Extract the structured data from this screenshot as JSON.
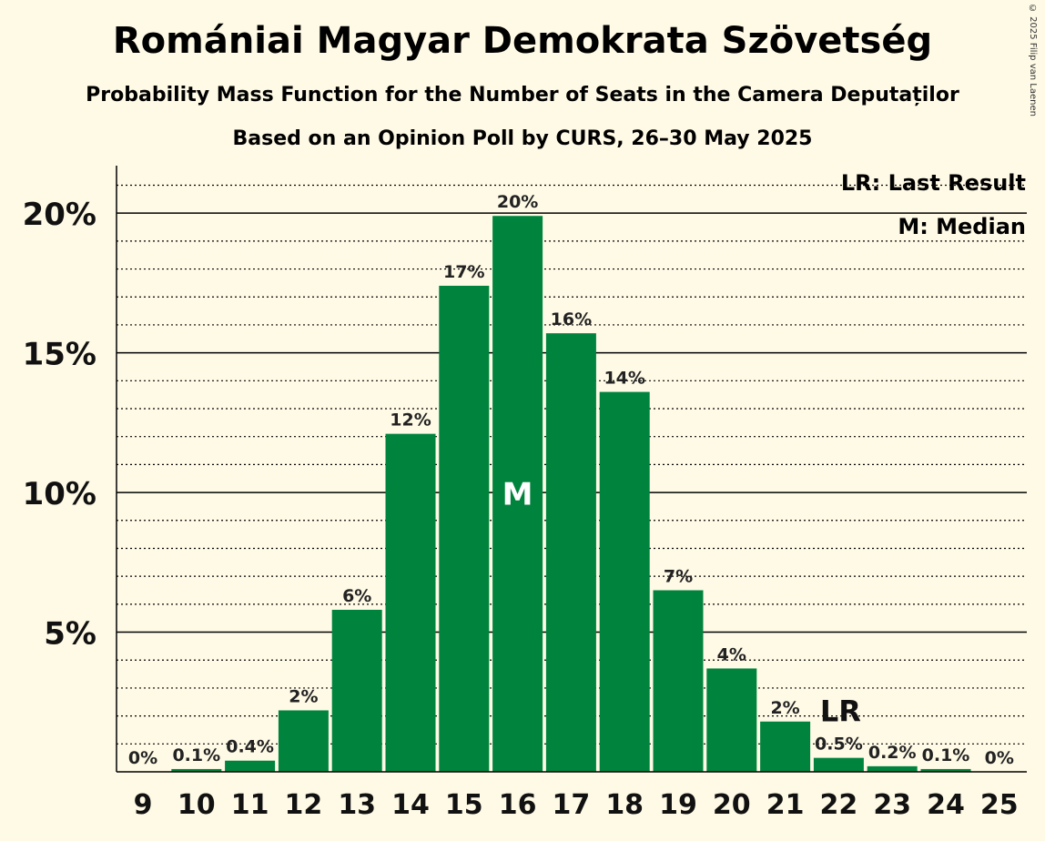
{
  "title": "Romániai Magyar Demokrata Szövetség",
  "subtitle": "Probability Mass Function for the Number of Seats in the Camera Deputaților",
  "subtitle2": "Based on an Opinion Poll by CURS, 26–30 May 2025",
  "copyright": "© 2025 Filip van Laenen",
  "legend": {
    "last_result": "LR: Last Result",
    "median": "M: Median"
  },
  "colors": {
    "bar": "#00843d",
    "background": "#fffae6"
  },
  "chart_data": {
    "type": "bar",
    "categories": [
      "9",
      "10",
      "11",
      "12",
      "13",
      "14",
      "15",
      "16",
      "17",
      "18",
      "19",
      "20",
      "21",
      "22",
      "23",
      "24",
      "25"
    ],
    "values": [
      0,
      0.1,
      0.4,
      2.2,
      5.8,
      12.1,
      17.4,
      19.9,
      15.7,
      13.6,
      6.5,
      3.7,
      1.8,
      0.5,
      0.2,
      0.1,
      0
    ],
    "data_labels": [
      "0%",
      "0.1%",
      "0.4%",
      "2%",
      "6%",
      "12%",
      "17%",
      "20%",
      "16%",
      "14%",
      "7%",
      "4%",
      "2%",
      "0.5%",
      "0.2%",
      "0.1%",
      "0%"
    ],
    "ylim": [
      0,
      21.7
    ],
    "yticks": [
      5,
      10,
      15,
      20
    ],
    "ytick_labels": [
      "5%",
      "10%",
      "15%",
      "20%"
    ],
    "minor_grid_step": 1,
    "median": "16",
    "median_label": "M",
    "last_result": "22",
    "last_result_label": "LR",
    "xlabel": "",
    "ylabel": ""
  }
}
